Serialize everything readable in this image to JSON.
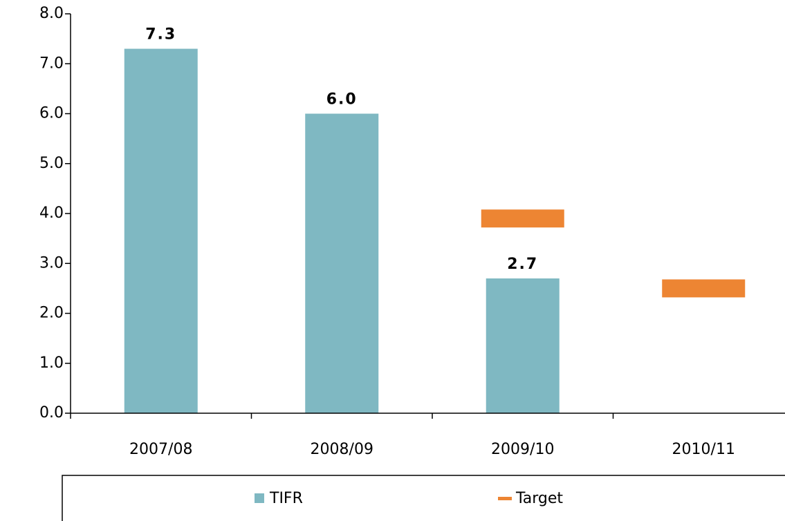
{
  "chart_data": {
    "type": "bar",
    "categories": [
      "2007/08",
      "2008/09",
      "2009/10",
      "2010/11"
    ],
    "series": [
      {
        "name": "TIFR",
        "color": "#7fb8c2",
        "style": "bar",
        "values": [
          7.3,
          6.0,
          2.7,
          null
        ],
        "value_labels": [
          "7.3",
          "6.0",
          "2.7",
          null
        ]
      },
      {
        "name": "Target",
        "color": "#ed8533",
        "style": "marker",
        "values": [
          null,
          null,
          3.9,
          2.5
        ]
      }
    ],
    "ylim": [
      0,
      8
    ],
    "yticks": [
      {
        "value": 0,
        "label": "0.0"
      },
      {
        "value": 1,
        "label": "1.0"
      },
      {
        "value": 2,
        "label": "2.0"
      },
      {
        "value": 3,
        "label": "3.0"
      },
      {
        "value": 4,
        "label": "4.0"
      },
      {
        "value": 5,
        "label": "5.0"
      },
      {
        "value": 6,
        "label": "6.0"
      },
      {
        "value": 7,
        "label": "7.0"
      },
      {
        "value": 8,
        "label": "8.0"
      }
    ],
    "grid": false,
    "legend": "bottom"
  }
}
